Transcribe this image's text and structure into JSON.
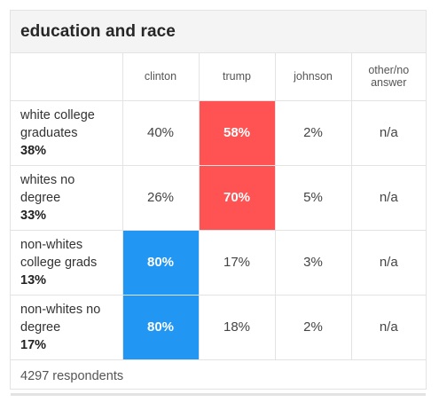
{
  "card": {
    "title": "education and race"
  },
  "columns": [
    "clinton",
    "trump",
    "johnson",
    "other/no answer"
  ],
  "colors": {
    "dem": "#2196f3",
    "rep": "#ff5252",
    "border": "#e3e3e3",
    "header_bg": "#f4f4f4"
  },
  "rows": [
    {
      "label": "white college graduates",
      "share": "38%",
      "values": [
        "40%",
        "58%",
        "2%",
        "n/a"
      ],
      "winner_index": 1,
      "winner_party": "rep"
    },
    {
      "label": "whites no degree",
      "share": "33%",
      "values": [
        "26%",
        "70%",
        "5%",
        "n/a"
      ],
      "winner_index": 1,
      "winner_party": "rep"
    },
    {
      "label": "non-whites college grads",
      "share": "13%",
      "values": [
        "80%",
        "17%",
        "3%",
        "n/a"
      ],
      "winner_index": 0,
      "winner_party": "dem"
    },
    {
      "label": "non-whites no degree",
      "share": "17%",
      "values": [
        "80%",
        "18%",
        "2%",
        "n/a"
      ],
      "winner_index": 0,
      "winner_party": "dem"
    }
  ],
  "footer": {
    "respondents": "4297 respondents"
  }
}
